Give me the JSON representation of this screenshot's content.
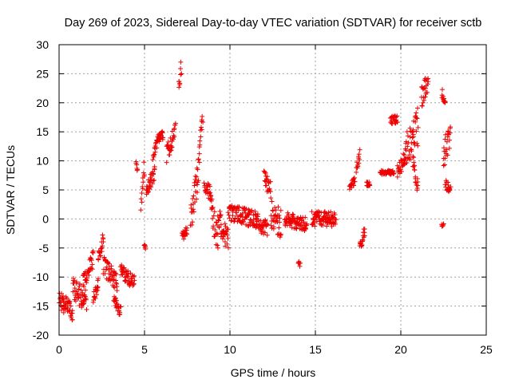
{
  "chart_data": {
    "type": "scatter",
    "title": "Day 269 of 2023, Sidereal Day-to-day VTEC variation (SDTVAR) for receiver sctb",
    "xlabel": "GPS time / hours",
    "ylabel": "SDTVAR / TECUs",
    "xlim": [
      0,
      25
    ],
    "ylim": [
      -20,
      30
    ],
    "xticks": [
      "0",
      "5",
      "10",
      "15",
      "20",
      "25"
    ],
    "yticks": [
      "-20",
      "-15",
      "-10",
      "-5",
      "0",
      "5",
      "10",
      "15",
      "20",
      "25",
      "30"
    ],
    "grid": true,
    "marker": "+",
    "series_color": "#ee0000",
    "series": [
      {
        "name": "SDTVAR",
        "segments": [
          {
            "x0": 0.0,
            "x1": 0.8,
            "y0": -14,
            "y1": -16,
            "jitter": 1.6
          },
          {
            "x0": 0.8,
            "x1": 1.6,
            "y0": -12,
            "y1": -14,
            "jitter": 2.0
          },
          {
            "x0": 1.4,
            "x1": 2.0,
            "y0": -11,
            "y1": -7,
            "jitter": 1.5
          },
          {
            "x0": 2.0,
            "x1": 2.3,
            "y0": -14,
            "y1": -11,
            "jitter": 1.2
          },
          {
            "x0": 2.3,
            "x1": 2.6,
            "y0": -7,
            "y1": -3,
            "jitter": 1.2
          },
          {
            "x0": 2.6,
            "x1": 3.4,
            "y0": -8,
            "y1": -11,
            "jitter": 1.6
          },
          {
            "x0": 3.2,
            "x1": 3.6,
            "y0": -14,
            "y1": -16,
            "jitter": 1.0
          },
          {
            "x0": 3.6,
            "x1": 4.4,
            "y0": -9,
            "y1": -11,
            "jitter": 1.2
          },
          {
            "x0": 4.5,
            "x1": 4.6,
            "y0": 9.5,
            "y1": 8.5,
            "jitter": 0.4
          },
          {
            "x0": 4.8,
            "x1": 5.0,
            "y0": 3,
            "y1": 9,
            "jitter": 1.5
          },
          {
            "x0": 5.0,
            "x1": 5.05,
            "y0": -4.5,
            "y1": -5,
            "jitter": 0.3
          },
          {
            "x0": 5.1,
            "x1": 5.6,
            "y0": 5,
            "y1": 8,
            "jitter": 1.2
          },
          {
            "x0": 5.5,
            "x1": 5.7,
            "y0": 10,
            "y1": 13,
            "jitter": 1.0
          },
          {
            "x0": 5.7,
            "x1": 6.1,
            "y0": 13.5,
            "y1": 14.5,
            "jitter": 0.8
          },
          {
            "x0": 6.3,
            "x1": 6.8,
            "y0": 11,
            "y1": 15,
            "jitter": 1.5
          },
          {
            "x0": 7.0,
            "x1": 7.15,
            "y0": 23,
            "y1": 26,
            "jitter": 1.5
          },
          {
            "x0": 7.2,
            "x1": 7.5,
            "y0": -3,
            "y1": -2,
            "jitter": 0.8
          },
          {
            "x0": 7.7,
            "x1": 8.2,
            "y0": 0,
            "y1": 9,
            "jitter": 2.5
          },
          {
            "x0": 8.2,
            "x1": 8.4,
            "y0": 12,
            "y1": 18,
            "jitter": 1.5
          },
          {
            "x0": 8.5,
            "x1": 8.9,
            "y0": 6,
            "y1": 4,
            "jitter": 1.2
          },
          {
            "x0": 8.9,
            "x1": 9.3,
            "y0": 2,
            "y1": -4,
            "jitter": 2.5
          },
          {
            "x0": 9.3,
            "x1": 9.9,
            "y0": 0,
            "y1": -4,
            "jitter": 2.0
          },
          {
            "x0": 9.9,
            "x1": 11.5,
            "y0": 1,
            "y1": 0,
            "jitter": 1.5
          },
          {
            "x0": 11.5,
            "x1": 12.2,
            "y0": 0,
            "y1": -2,
            "jitter": 1.5
          },
          {
            "x0": 12.0,
            "x1": 12.4,
            "y0": 7,
            "y1": 5,
            "jitter": 1.5
          },
          {
            "x0": 12.4,
            "x1": 13.0,
            "y0": 1,
            "y1": -1,
            "jitter": 2.5
          },
          {
            "x0": 13.2,
            "x1": 14.5,
            "y0": 0,
            "y1": -1,
            "jitter": 1.2
          },
          {
            "x0": 14.0,
            "x1": 14.1,
            "y0": -7.5,
            "y1": -8,
            "jitter": 0.4
          },
          {
            "x0": 14.8,
            "x1": 16.2,
            "y0": 0,
            "y1": 0,
            "jitter": 1.3
          },
          {
            "x0": 17.0,
            "x1": 17.3,
            "y0": 5,
            "y1": 7,
            "jitter": 0.8
          },
          {
            "x0": 17.4,
            "x1": 17.6,
            "y0": 9,
            "y1": 11,
            "jitter": 1.0
          },
          {
            "x0": 17.6,
            "x1": 17.9,
            "y0": -5,
            "y1": -2,
            "jitter": 0.8
          },
          {
            "x0": 18.0,
            "x1": 18.2,
            "y0": 6,
            "y1": 6,
            "jitter": 0.4
          },
          {
            "x0": 18.8,
            "x1": 19.6,
            "y0": 8,
            "y1": 8,
            "jitter": 0.4
          },
          {
            "x0": 19.4,
            "x1": 19.8,
            "y0": 17,
            "y1": 17,
            "jitter": 0.8
          },
          {
            "x0": 19.8,
            "x1": 20.3,
            "y0": 8,
            "y1": 11,
            "jitter": 1.2
          },
          {
            "x0": 20.3,
            "x1": 21.0,
            "y0": 12,
            "y1": 16,
            "jitter": 3.5
          },
          {
            "x0": 20.7,
            "x1": 21.0,
            "y0": 10,
            "y1": 5,
            "jitter": 1.5
          },
          {
            "x0": 21.2,
            "x1": 21.6,
            "y0": 21,
            "y1": 24,
            "jitter": 2.0
          },
          {
            "x0": 22.4,
            "x1": 22.6,
            "y0": 22,
            "y1": 20,
            "jitter": 1.0
          },
          {
            "x0": 22.5,
            "x1": 22.9,
            "y0": 11,
            "y1": 15,
            "jitter": 2.5
          },
          {
            "x0": 22.6,
            "x1": 22.9,
            "y0": 6,
            "y1": 5,
            "jitter": 0.8
          },
          {
            "x0": 22.4,
            "x1": 22.5,
            "y0": -1,
            "y1": -1,
            "jitter": 0.3
          }
        ]
      }
    ]
  }
}
